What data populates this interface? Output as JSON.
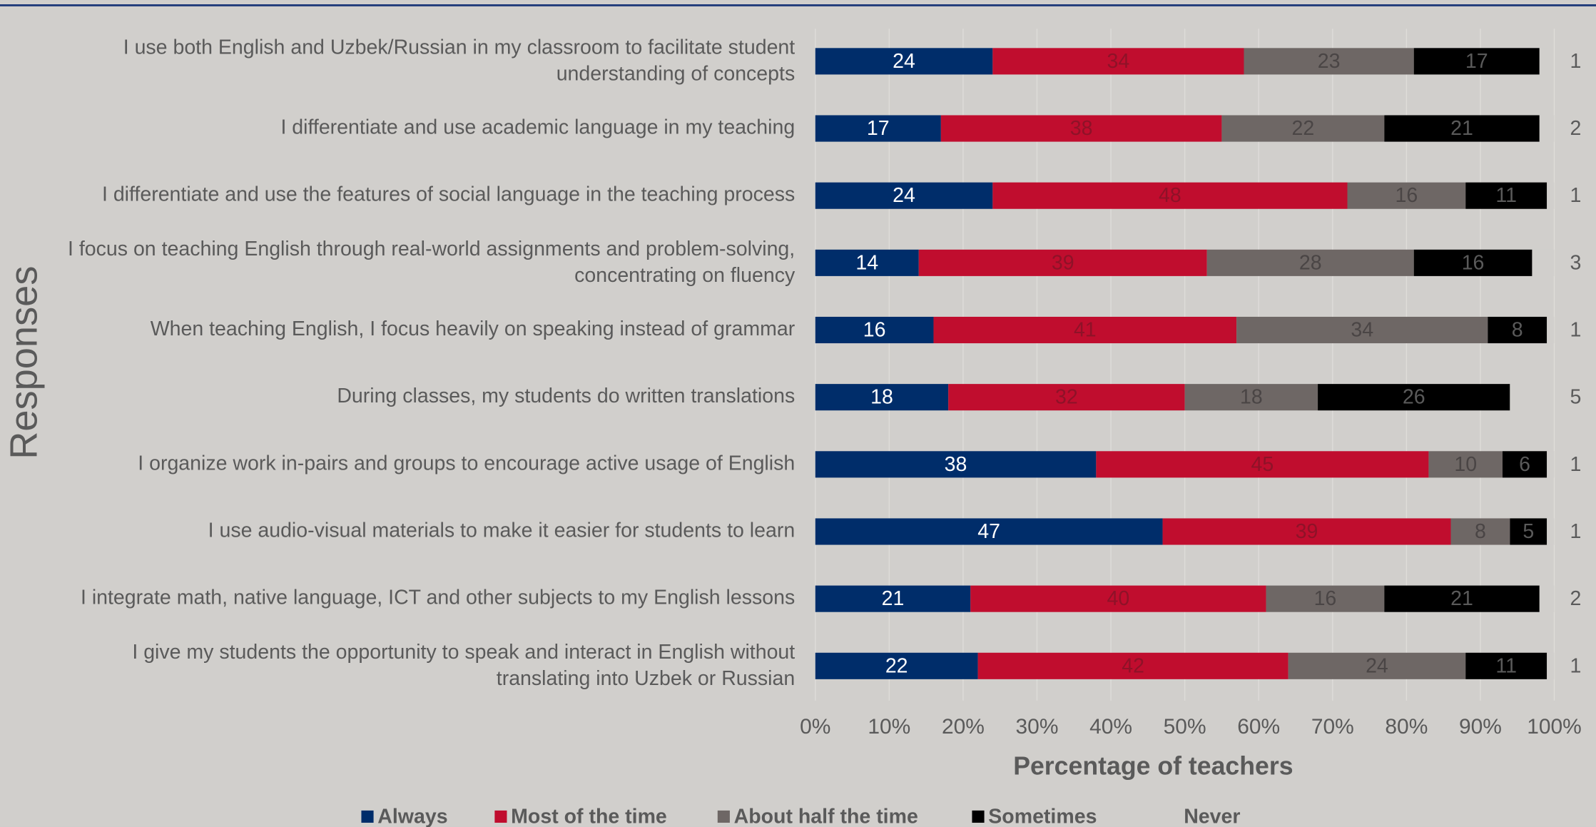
{
  "chart_data": {
    "type": "stacked_bar_horizontal",
    "categories": [
      "I use both English and Uzbek/Russian in my classroom to facilitate student understanding of concepts",
      "I differentiate and use academic language in my teaching",
      "I differentiate and use the features of social language in the teaching process",
      "I focus on teaching English through real-world assignments and problem-solving, concentrating on fluency",
      "When teaching English, I focus heavily on speaking instead of grammar",
      "During classes, my students do written translations",
      "I organize work in-pairs and groups to encourage active  usage of English",
      "I use audio-visual materials to make it easier for students to learn",
      "I integrate math, native language, ICT and other subjects to my English lessons",
      "I give my students the opportunity to speak and interact in English without translating into Uzbek or Russian"
    ],
    "series": [
      {
        "name": "Always",
        "color": "#002d6a",
        "values": [
          24,
          17,
          24,
          14,
          16,
          18,
          38,
          47,
          21,
          22
        ]
      },
      {
        "name": "Most of the time",
        "color": "#c00d2e",
        "values": [
          34,
          38,
          48,
          39,
          41,
          32,
          45,
          39,
          40,
          42
        ]
      },
      {
        "name": "About half the time",
        "color": "#6e6765",
        "values": [
          23,
          22,
          16,
          28,
          34,
          18,
          10,
          8,
          16,
          24
        ]
      },
      {
        "name": "Sometimes",
        "color": "#000000",
        "values": [
          17,
          21,
          11,
          16,
          8,
          26,
          6,
          5,
          21,
          11
        ]
      },
      {
        "name": "Never",
        "color": "#d1cfcc",
        "values": [
          1,
          2,
          1,
          3,
          1,
          5,
          1,
          1,
          2,
          1
        ]
      }
    ],
    "xlabel": "Percentage of teachers",
    "ylabel": "Responses",
    "xlim": [
      0,
      100
    ],
    "xticks": [
      {
        "value": 0,
        "label": "0%"
      },
      {
        "value": 10,
        "label": "10%"
      },
      {
        "value": 20,
        "label": "20%"
      },
      {
        "value": 30,
        "label": "30%"
      },
      {
        "value": 40,
        "label": "40%"
      },
      {
        "value": 50,
        "label": "50%"
      },
      {
        "value": 60,
        "label": "60%"
      },
      {
        "value": 70,
        "label": "70%"
      },
      {
        "value": 80,
        "label": "80%"
      },
      {
        "value": 90,
        "label": "90%"
      },
      {
        "value": 100,
        "label": "100%"
      }
    ],
    "grid": true,
    "legend": "bottom"
  }
}
